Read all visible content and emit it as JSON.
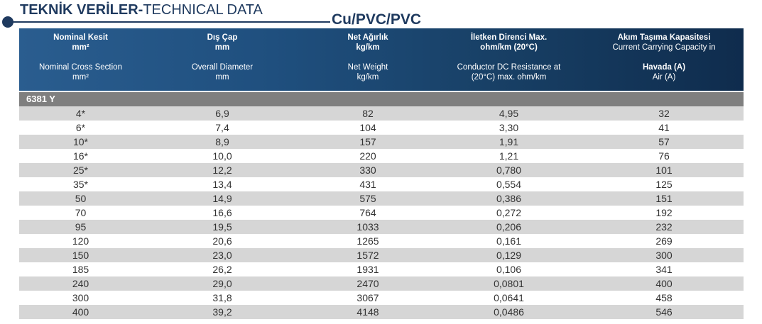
{
  "title": {
    "bold": "TEKNİK VERİLER-",
    "light": "TECHNICAL DATA"
  },
  "subtitle": "Cu/PVC/PVC",
  "columns": [
    {
      "tr_line1": "Nominal Kesit",
      "tr_line2": "mm²",
      "en_line1": "Nominal Cross Section",
      "en_line2": "mm²"
    },
    {
      "tr_line1": "Dış Çap",
      "tr_line2": "mm",
      "en_line1": "Overall Diameter",
      "en_line2": "mm"
    },
    {
      "tr_line1": "Net Ağırlık",
      "tr_line2": "kg/km",
      "en_line1": "Net Weight",
      "en_line2": "kg/km"
    },
    {
      "tr_line1": "İletken Direnci Max.",
      "tr_line2": "ohm/km (20°C)",
      "en_line1": "Conductor DC Resistance at",
      "en_line2": "(20°C) max. ohm/km"
    },
    {
      "tr_line1": "Akım Taşıma Kapasitesi",
      "tr_line2": "Current Carrying Capacity in",
      "en_line1": "Havada (A)",
      "en_line2": "Air (A)"
    }
  ],
  "section_label": "6381 Y",
  "rows": [
    [
      "4*",
      "6,9",
      "82",
      "4,95",
      "32"
    ],
    [
      "6*",
      "7,4",
      "104",
      "3,30",
      "41"
    ],
    [
      "10*",
      "8,9",
      "157",
      "1,91",
      "57"
    ],
    [
      "16*",
      "10,0",
      "220",
      "1,21",
      "76"
    ],
    [
      "25*",
      "12,2",
      "330",
      "0,780",
      "101"
    ],
    [
      "35*",
      "13,4",
      "431",
      "0,554",
      "125"
    ],
    [
      "50",
      "14,9",
      "575",
      "0,386",
      "151"
    ],
    [
      "70",
      "16,6",
      "764",
      "0,272",
      "192"
    ],
    [
      "95",
      "19,5",
      "1033",
      "0,206",
      "232"
    ],
    [
      "120",
      "20,6",
      "1265",
      "0,161",
      "269"
    ],
    [
      "150",
      "23,0",
      "1572",
      "0,129",
      "300"
    ],
    [
      "185",
      "26,2",
      "1931",
      "0,106",
      "341"
    ],
    [
      "240",
      "29,0",
      "2470",
      "0,0801",
      "400"
    ],
    [
      "300",
      "31,8",
      "3067",
      "0,0641",
      "458"
    ],
    [
      "400",
      "39,2",
      "4148",
      "0,0486",
      "546"
    ]
  ],
  "colors": {
    "header_dark": "#0f2c4d",
    "header_light": "#2a5d8f",
    "title": "#1f3a5f",
    "section": "#7f7f7f",
    "row_alt": "#d6d6d6"
  }
}
